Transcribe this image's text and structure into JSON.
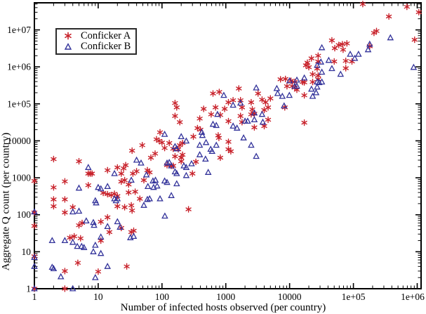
{
  "colors": {
    "series_a": "#c8222b",
    "series_b": "#32329a",
    "axis": "#000000",
    "background": "#ffffff"
  },
  "legend": {
    "items": [
      {
        "label": "Conficker A",
        "marker": "asterisk-icon"
      },
      {
        "label": "Conficker B",
        "marker": "triangle-icon"
      }
    ]
  },
  "chart_data": {
    "type": "scatter",
    "title": "",
    "xlabel": "Number of infected hosts observed (per country)",
    "ylabel": "Aggregate Q count (per country)",
    "xscale": "log",
    "yscale": "log",
    "xlim": [
      1,
      1150000
    ],
    "ylim": [
      1,
      54000000
    ],
    "grid": false,
    "legend_position": "top-left",
    "xticks": {
      "values": [
        1,
        10,
        100,
        1000,
        10000,
        100000,
        1000000
      ],
      "labels": [
        "1",
        "10",
        "100",
        "1000",
        "10000",
        "1e+05",
        "1e+06"
      ]
    },
    "yticks": {
      "values": [
        1,
        10,
        100,
        1000,
        10000,
        100000,
        1000000,
        10000000
      ],
      "labels": [
        "1",
        "10",
        "100",
        "1000",
        "10000",
        "1e+05",
        "1e+06",
        "1e+07"
      ]
    },
    "series": [
      {
        "name": "Conficker A",
        "marker": "asterisk",
        "color": "#c8222b",
        "points": [
          [
            140000,
            50000000
          ],
          [
            690000,
            42000000
          ],
          [
            1060000,
            30000000
          ],
          [
            360000,
            23000000
          ],
          [
            230000,
            9300000
          ],
          [
            210000,
            8300000
          ],
          [
            910000,
            5400000
          ],
          [
            46000,
            5200000
          ],
          [
            59000,
            3900000
          ],
          [
            67000,
            4100000
          ],
          [
            79000,
            4300000
          ],
          [
            51000,
            3200000
          ],
          [
            69000,
            2900000
          ],
          [
            180000,
            3600000
          ],
          [
            28000,
            2000000
          ],
          [
            22000,
            1700000
          ],
          [
            28000,
            1400000
          ],
          [
            19000,
            1300000
          ],
          [
            18000,
            1100000
          ],
          [
            20000,
            980000
          ],
          [
            27000,
            900000
          ],
          [
            50000,
            1400000
          ],
          [
            76000,
            1450000
          ],
          [
            95000,
            1400000
          ],
          [
            76000,
            920000
          ],
          [
            23000,
            630000
          ],
          [
            28000,
            580000
          ],
          [
            28000,
            460000
          ],
          [
            16000,
            390000
          ],
          [
            17000,
            380000
          ],
          [
            23000,
            390000
          ],
          [
            12000,
            390000
          ],
          [
            12000,
            275000
          ],
          [
            13000,
            240000
          ],
          [
            9100,
            300000
          ],
          [
            11000,
            300000
          ],
          [
            17000,
            170000
          ],
          [
            17000,
            31000
          ],
          [
            7200,
            460000
          ],
          [
            8600,
            470000
          ],
          [
            10500,
            420000
          ],
          [
            630,
            190000
          ],
          [
            790,
            210000
          ],
          [
            1600,
            260000
          ],
          [
            3200,
            190000
          ],
          [
            1100,
            110000
          ],
          [
            1300,
            125000
          ],
          [
            1700,
            125000
          ],
          [
            2500,
            110000
          ],
          [
            3700,
            130000
          ],
          [
            4200,
            110000
          ],
          [
            5000,
            140000
          ],
          [
            160,
            105000
          ],
          [
            170,
            80000
          ],
          [
            450,
            73000
          ],
          [
            690,
            80000
          ],
          [
            960,
            73000
          ],
          [
            1800,
            80000
          ],
          [
            2600,
            71000
          ],
          [
            4000,
            68000
          ],
          [
            4600,
            80000
          ],
          [
            8400,
            80000
          ],
          [
            2800,
            54000
          ],
          [
            160,
            47000
          ],
          [
            190,
            32000
          ],
          [
            390,
            40000
          ],
          [
            590,
            52000
          ],
          [
            820,
            50000
          ],
          [
            1100,
            34000
          ],
          [
            1700,
            47000
          ],
          [
            2500,
            52000
          ],
          [
            1800,
            32000
          ],
          [
            2800,
            23000
          ],
          [
            4000,
            25000
          ],
          [
            4600,
            37000
          ],
          [
            360,
            22000
          ],
          [
            400,
            20000
          ],
          [
            310,
            13000
          ],
          [
            760,
            14000
          ],
          [
            1100,
            9400
          ],
          [
            780,
            12000
          ],
          [
            100,
            9000
          ],
          [
            130,
            8700
          ],
          [
            110,
            6400
          ],
          [
            150,
            6100
          ],
          [
            190,
            7600
          ],
          [
            210,
            8700
          ],
          [
            180,
            5900
          ],
          [
            210,
            4200
          ],
          [
            160,
            3800
          ],
          [
            200,
            3500
          ],
          [
            1100,
            5900
          ],
          [
            1200,
            5200
          ],
          [
            820,
            3500
          ],
          [
            340,
            2700
          ],
          [
            120,
            2200
          ],
          [
            140,
            2100
          ],
          [
            150,
            2100
          ],
          [
            200,
            2800
          ],
          [
            300,
            1300
          ],
          [
            260,
            140
          ],
          [
            93,
            17000
          ],
          [
            82,
            11000
          ],
          [
            90,
            10000
          ],
          [
            49,
            7600
          ],
          [
            34,
            5400
          ],
          [
            78,
            4500
          ],
          [
            67,
            3500
          ],
          [
            2,
            3200
          ],
          [
            5,
            2800
          ],
          [
            20,
            1900
          ],
          [
            25,
            1800
          ],
          [
            14,
            1600
          ],
          [
            59,
            1600
          ],
          [
            27,
            2200
          ],
          [
            23,
            1300
          ],
          [
            7,
            1300
          ],
          [
            7.5,
            1300
          ],
          [
            8,
            1300
          ],
          [
            35,
            1300
          ],
          [
            64,
            1400
          ],
          [
            40,
            1500
          ],
          [
            1,
            820
          ],
          [
            3,
            800
          ],
          [
            23,
            790
          ],
          [
            52,
            860
          ],
          [
            26,
            860
          ],
          [
            7,
            630
          ],
          [
            30,
            660
          ],
          [
            2,
            550
          ],
          [
            30,
            400
          ],
          [
            38,
            420
          ],
          [
            12,
            390
          ],
          [
            14,
            360
          ],
          [
            16,
            340
          ],
          [
            18,
            370
          ],
          [
            20,
            320
          ],
          [
            2,
            260
          ],
          [
            3,
            260
          ],
          [
            45,
            270
          ],
          [
            2,
            170
          ],
          [
            4,
            160
          ],
          [
            33,
            180
          ],
          [
            20,
            170
          ],
          [
            26,
            160
          ],
          [
            34,
            130
          ],
          [
            1,
            115
          ],
          [
            3,
            115
          ],
          [
            14,
            85
          ],
          [
            1,
            50
          ],
          [
            5,
            52
          ],
          [
            5.6,
            60
          ],
          [
            11,
            65
          ],
          [
            15,
            34
          ],
          [
            23,
            44
          ],
          [
            36,
            37
          ],
          [
            33,
            34
          ],
          [
            3.6,
            24
          ],
          [
            4.2,
            26
          ],
          [
            5.3,
            23
          ],
          [
            11,
            20
          ],
          [
            1,
            7.5
          ],
          [
            4.8,
            5
          ],
          [
            28,
            4
          ],
          [
            3,
            3
          ],
          [
            10,
            2.9
          ],
          [
            1,
            1
          ],
          [
            3,
            1
          ]
        ]
      },
      {
        "name": "Conficker B",
        "marker": "triangle",
        "color": "#32329a",
        "points": [
          [
            380000,
            6100000
          ],
          [
            880000,
            970000
          ],
          [
            180000,
            4100000
          ],
          [
            170000,
            2900000
          ],
          [
            120000,
            2200000
          ],
          [
            89000,
            2200000
          ],
          [
            105000,
            1700000
          ],
          [
            41000,
            1500000
          ],
          [
            31000,
            1350000
          ],
          [
            27000,
            1100000
          ],
          [
            32000,
            3300000
          ],
          [
            46000,
            900000
          ],
          [
            63000,
            630000
          ],
          [
            32000,
            720000
          ],
          [
            17000,
            500000
          ],
          [
            13000,
            440000
          ],
          [
            10000,
            420000
          ],
          [
            27000,
            390000
          ],
          [
            32000,
            390000
          ],
          [
            29000,
            375000
          ],
          [
            12000,
            300000
          ],
          [
            13000,
            300000
          ],
          [
            22000,
            250000
          ],
          [
            27000,
            285000
          ],
          [
            26000,
            200000
          ],
          [
            23000,
            160000
          ],
          [
            930,
            170000
          ],
          [
            3000,
            270000
          ],
          [
            6300,
            260000
          ],
          [
            6500,
            190000
          ],
          [
            7700,
            160000
          ],
          [
            9900,
            170000
          ],
          [
            1700,
            105000
          ],
          [
            1300,
            92000
          ],
          [
            8200,
            88000
          ],
          [
            740,
            52000
          ],
          [
            2800,
            57000
          ],
          [
            3700,
            52000
          ],
          [
            2000,
            34000
          ],
          [
            2200,
            34000
          ],
          [
            2800,
            37000
          ],
          [
            3800,
            32000
          ],
          [
            630,
            28000
          ],
          [
            710,
            26000
          ],
          [
            1300,
            25000
          ],
          [
            1500,
            22000
          ],
          [
            420,
            17000
          ],
          [
            430,
            14000
          ],
          [
            110,
            15000
          ],
          [
            200,
            13000
          ],
          [
            240,
            9900
          ],
          [
            160,
            7000
          ],
          [
            170,
            6100
          ],
          [
            1900,
            12000
          ],
          [
            2500,
            7600
          ],
          [
            390,
            7600
          ],
          [
            490,
            9000
          ],
          [
            710,
            7600
          ],
          [
            580,
            5900
          ],
          [
            610,
            5200
          ],
          [
            390,
            4200
          ],
          [
            480,
            3200
          ],
          [
            3000,
            3800
          ],
          [
            130,
            2600
          ],
          [
            120,
            2500
          ],
          [
            140,
            2100
          ],
          [
            220,
            2100
          ],
          [
            240,
            1900
          ],
          [
            290,
            2400
          ],
          [
            160,
            1450
          ],
          [
            170,
            1300
          ],
          [
            240,
            1150
          ],
          [
            530,
            1400
          ],
          [
            110,
            820
          ],
          [
            120,
            750
          ],
          [
            170,
            690
          ],
          [
            140,
            330
          ],
          [
            111,
            92
          ],
          [
            40,
            3000
          ],
          [
            47,
            2500
          ],
          [
            57,
            1200
          ],
          [
            33,
            860
          ],
          [
            72,
            820
          ],
          [
            79,
            860
          ],
          [
            84,
            600
          ],
          [
            74,
            550
          ],
          [
            60,
            580
          ],
          [
            7,
            1900
          ],
          [
            18,
            1300
          ],
          [
            5,
            525
          ],
          [
            10,
            550
          ],
          [
            11,
            505
          ],
          [
            14,
            580
          ],
          [
            18,
            270
          ],
          [
            20,
            270
          ],
          [
            9,
            240
          ],
          [
            9.3,
            210
          ],
          [
            19,
            240
          ],
          [
            59,
            260
          ],
          [
            64,
            270
          ],
          [
            93,
            270
          ],
          [
            52,
            180
          ],
          [
            1,
            120
          ],
          [
            4,
            120
          ],
          [
            5,
            125
          ],
          [
            6.5,
            68
          ],
          [
            8.4,
            62
          ],
          [
            8.6,
            52
          ],
          [
            14,
            48
          ],
          [
            20,
            65
          ],
          [
            22,
            46
          ],
          [
            32,
            24
          ],
          [
            36,
            26
          ],
          [
            3,
            20
          ],
          [
            4,
            18
          ],
          [
            9,
            15
          ],
          [
            11,
            25
          ],
          [
            1.9,
            20
          ],
          [
            4.7,
            14
          ],
          [
            5.5,
            14
          ],
          [
            6,
            13
          ],
          [
            8.4,
            10
          ],
          [
            11,
            9
          ],
          [
            14,
            4
          ],
          [
            1.9,
            3.8
          ],
          [
            2.6,
            2.1
          ],
          [
            9,
            2
          ],
          [
            1,
            7
          ],
          [
            1,
            4
          ],
          [
            4,
            1
          ],
          [
            2,
            3.5
          ],
          [
            1,
            1
          ]
        ]
      }
    ]
  }
}
